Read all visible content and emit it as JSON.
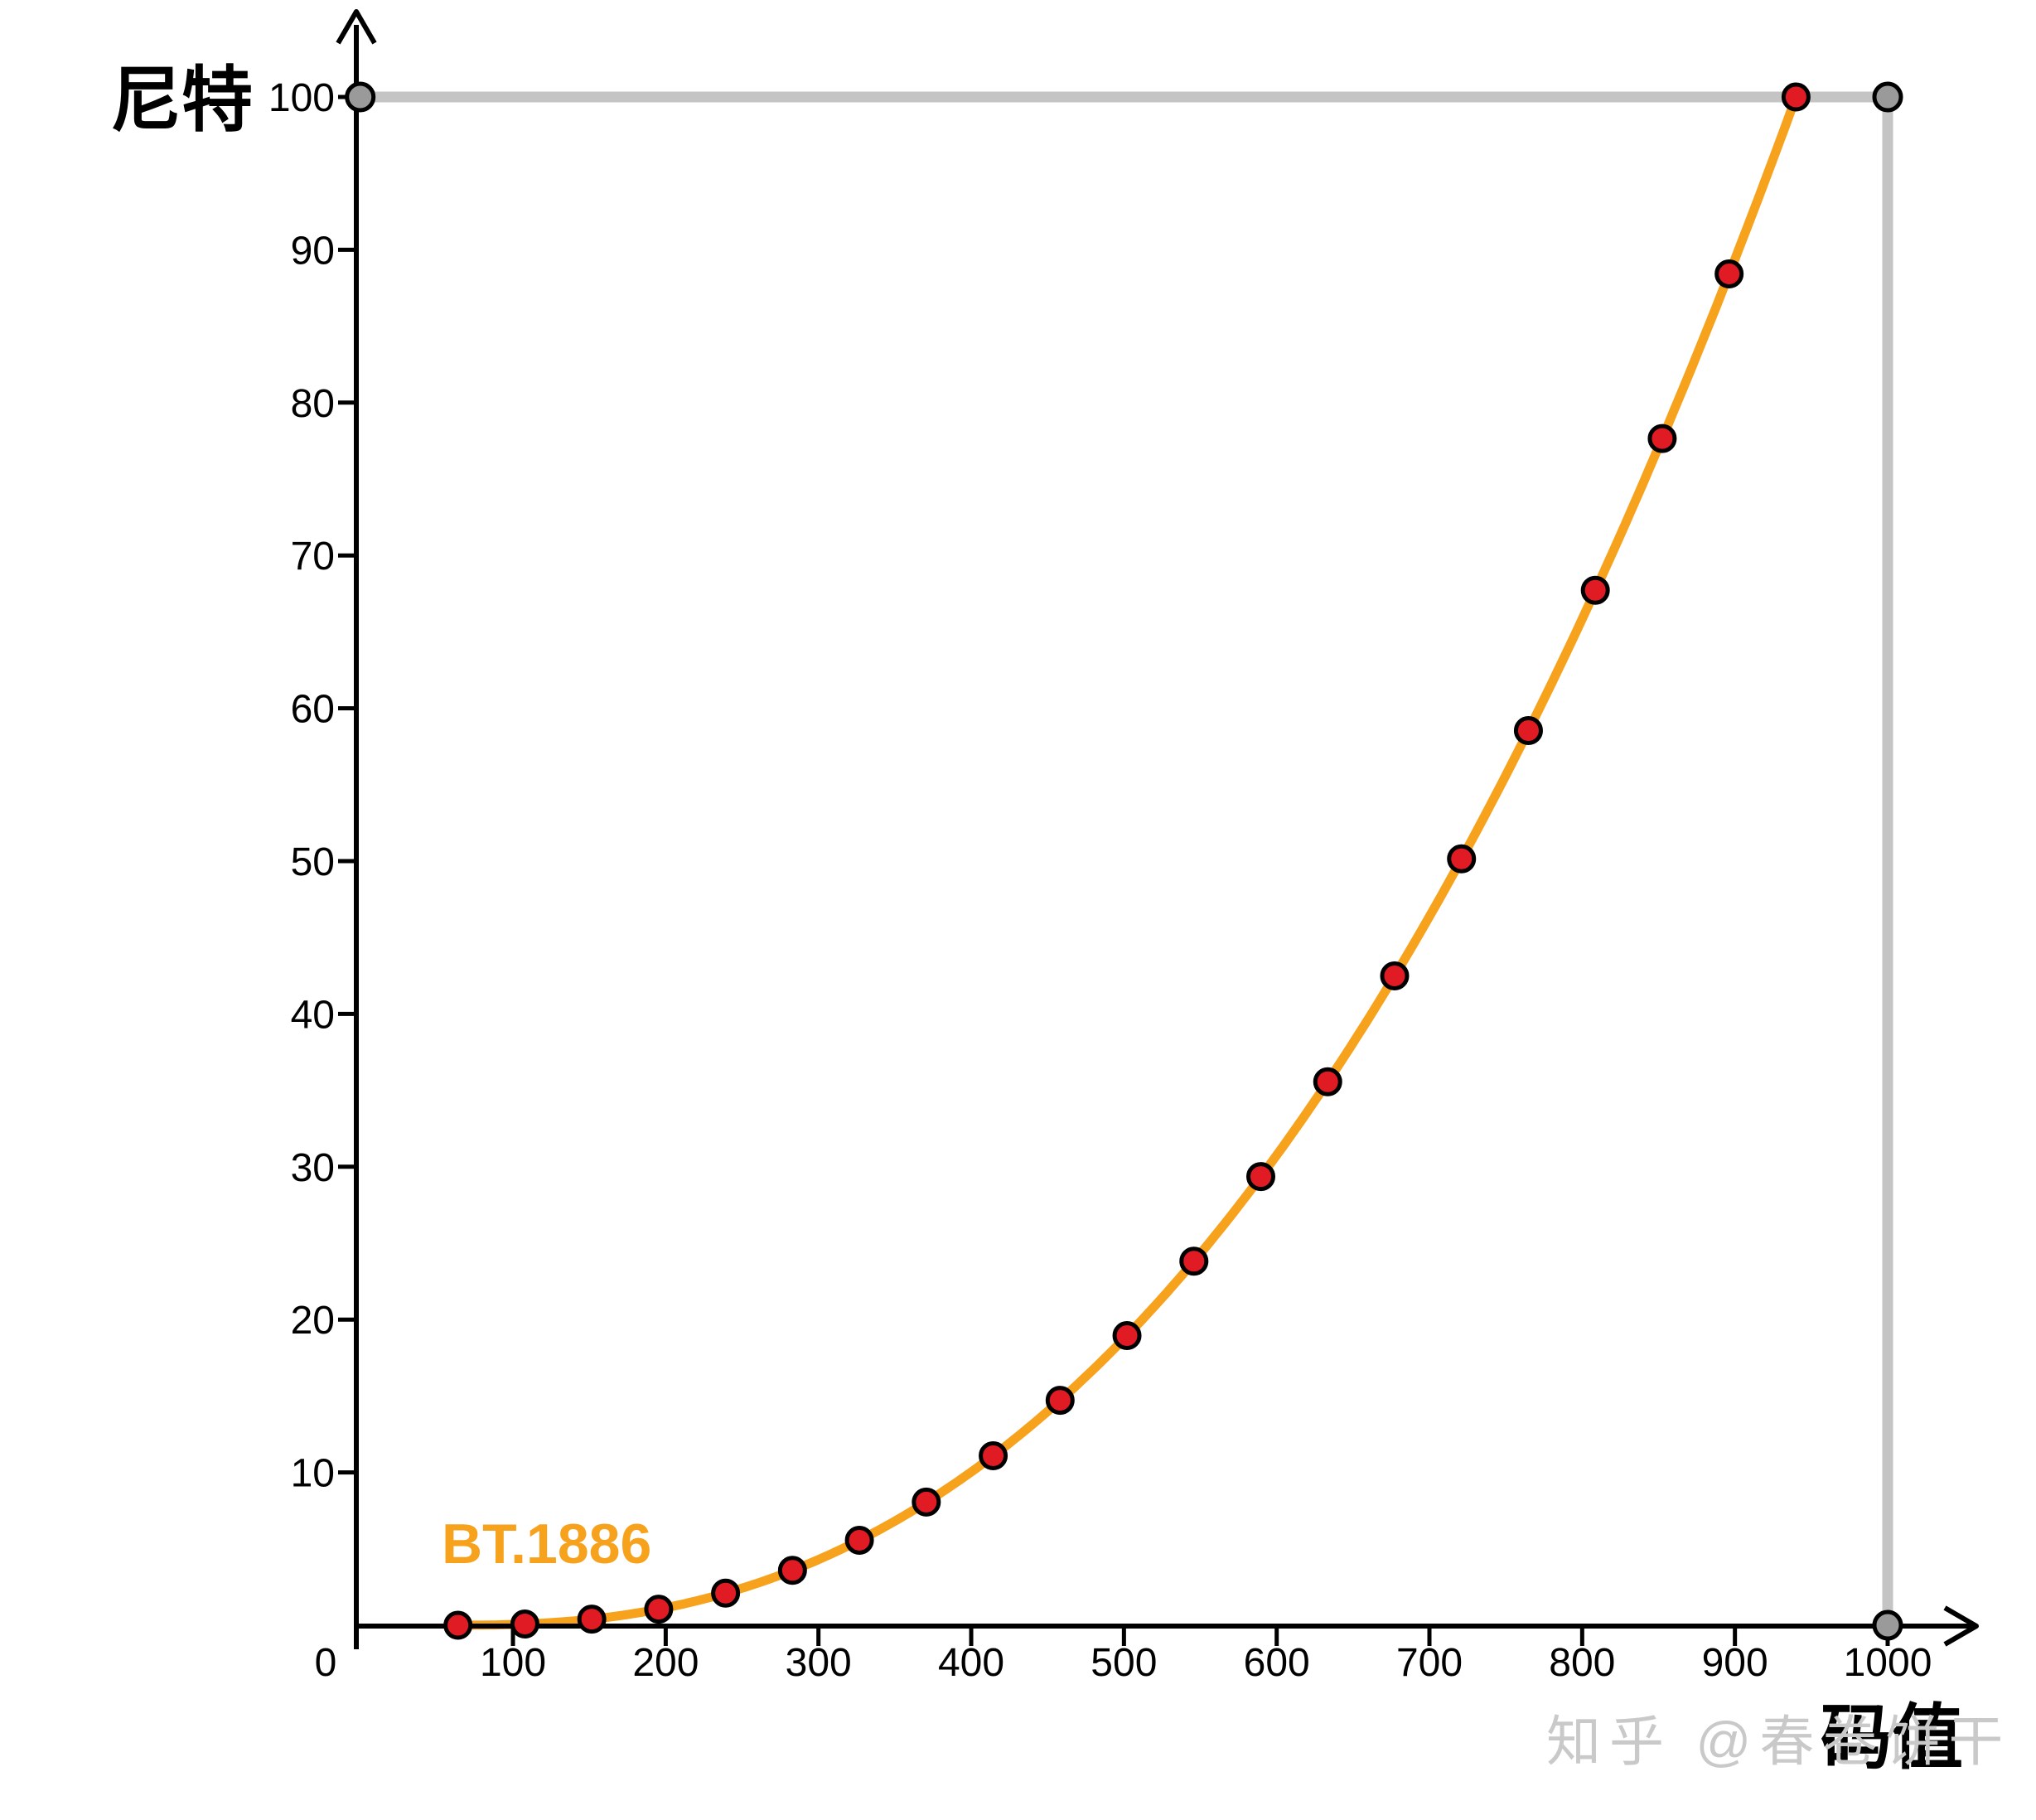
{
  "labels": {
    "y_axis_title": "尼特",
    "x_axis_title": "码值",
    "curve_label": "BT.1886",
    "watermark": "知乎 @春卷饼干"
  },
  "colors": {
    "curve_orange": "#F7A21C",
    "point_red": "#E01B24",
    "point_stroke": "#000000",
    "reference_gray": "#C4C4C4",
    "reference_dot_gray": "#9A9A9A",
    "axis_black": "#000000",
    "watermark_gray": "#C9C9C9"
  },
  "chart_data": {
    "type": "line",
    "title": "",
    "xlabel": "码值",
    "ylabel": "尼特",
    "xlim": [
      0,
      1050
    ],
    "ylim": [
      0,
      105
    ],
    "grid": false,
    "legend_position": "none",
    "x_ticks": [
      0,
      100,
      200,
      300,
      400,
      500,
      600,
      700,
      800,
      900,
      1000
    ],
    "x_tick_labels": [
      "0",
      "100",
      "200",
      "300",
      "400",
      "500",
      "600",
      "700",
      "800",
      "900",
      "1000"
    ],
    "y_ticks": [
      10,
      20,
      30,
      40,
      50,
      60,
      70,
      80,
      90,
      100
    ],
    "y_tick_labels": [
      "10",
      "20",
      "30",
      "40",
      "50",
      "60",
      "70",
      "80",
      "90",
      "100"
    ],
    "series": [
      {
        "name": "BT.1886",
        "x": [
          64,
          107.8,
          151.6,
          195.4,
          239.2,
          283,
          326.8,
          370.6,
          414.4,
          458.2,
          502,
          545.8,
          589.6,
          633.4,
          677.2,
          721,
          764.8,
          808.6,
          852.4,
          896.2,
          940
        ],
        "y": [
          0,
          0.08,
          0.4,
          1.05,
          2.1,
          3.59,
          5.56,
          8.06,
          11.09,
          14.72,
          18.95,
          23.82,
          29.36,
          35.56,
          42.49,
          50.15,
          58.54,
          67.72,
          77.65,
          88.42,
          100
        ]
      }
    ],
    "curve_model": {
      "type": "power",
      "gamma": 2.4,
      "code_black": 64,
      "code_white": 940,
      "peak_nits": 100
    },
    "reference": {
      "h_line_nits": 100,
      "v_line_code": 1000,
      "endpoint_dots": [
        [
          0,
          100
        ],
        [
          1000,
          100
        ],
        [
          1000,
          0
        ]
      ]
    }
  }
}
